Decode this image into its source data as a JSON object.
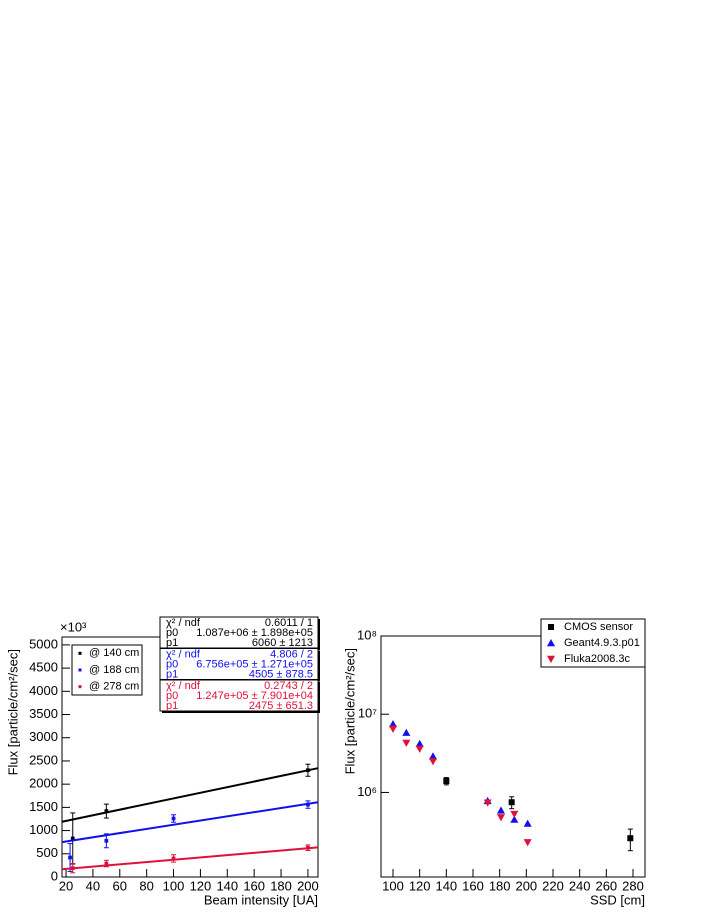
{
  "chart_data": [
    {
      "type": "scatter",
      "x_label": "Beam intensity [UA]",
      "y_label": "Flux [particle/cm²/sec]",
      "y_multiplier": "×10³",
      "xlim": [
        17,
        207.5
      ],
      "xticks": [
        20,
        40,
        60,
        80,
        100,
        120,
        140,
        160,
        180,
        200
      ],
      "ylim": [
        0,
        5170
      ],
      "yticks": [
        0,
        500,
        1000,
        1500,
        2000,
        2500,
        3000,
        3500,
        4000,
        4500,
        5000
      ],
      "series": [
        {
          "name": "@ 140 cm",
          "color": "#000000",
          "x": [
            25,
            50,
            200
          ],
          "values": [
            830,
            1420,
            2300
          ],
          "errors": [
            550,
            150,
            130
          ],
          "fit": {
            "intercept": 1087,
            "slope": 6.06
          },
          "stats": [
            [
              "χ² / ndf",
              "0.6011 / 1"
            ],
            [
              "p0",
              "1.087e+06 ± 1.898e+05"
            ],
            [
              "p1",
              "6060 ± 1213"
            ]
          ]
        },
        {
          "name": "@ 188 cm",
          "color": "#1010ee",
          "x": [
            23,
            50,
            100,
            200
          ],
          "values": [
            420,
            780,
            1260,
            1560
          ],
          "errors": [
            300,
            150,
            80,
            80
          ],
          "fit": {
            "intercept": 675.6,
            "slope": 4.505
          },
          "stats": [
            [
              "χ² / ndf",
              "4.806 / 2"
            ],
            [
              "p0",
              "6.756e+05 ± 1.271e+05"
            ],
            [
              "p1",
              "4505 ± 878.5"
            ]
          ]
        },
        {
          "name": "@ 278 cm",
          "color": "#e0103a",
          "x": [
            25,
            50,
            100,
            200
          ],
          "values": [
            190,
            290,
            400,
            630
          ],
          "errors": [
            100,
            70,
            80,
            60
          ],
          "fit": {
            "intercept": 124.7,
            "slope": 2.475
          },
          "stats": [
            [
              "χ² / ndf",
              "0.2743 / 2"
            ],
            [
              "p0",
              "1.247e+05 ± 7.901e+04"
            ],
            [
              "p1",
              "2475 ± 651.3"
            ]
          ]
        }
      ]
    },
    {
      "type": "scatter",
      "x_label": "SSD [cm]",
      "y_label": "Flux [particle/cm²/sec]",
      "log_y": true,
      "xlim": [
        91,
        289
      ],
      "xticks": [
        100,
        120,
        140,
        160,
        180,
        200,
        220,
        240,
        260,
        280
      ],
      "ylim": [
        83000,
        100000000
      ],
      "yticks": [
        {
          "value": 1000000,
          "label": "10⁶"
        },
        {
          "value": 10000000,
          "label": "10⁷"
        },
        {
          "value": 100000000,
          "label": "10⁸"
        }
      ],
      "series": [
        {
          "name": "CMOS sensor",
          "color": "#000000",
          "marker": "square",
          "x": [
            140,
            189,
            278
          ],
          "values": [
            1400000,
            750000,
            260000
          ],
          "errors": [
            150000,
            130000,
            80000
          ]
        },
        {
          "name": "Geant4.9.3.p01",
          "color": "#1010ee",
          "marker": "triangle-up",
          "x": [
            100,
            110,
            120,
            130,
            171,
            181,
            191,
            201
          ],
          "values": [
            7500000,
            5800000,
            4200000,
            2900000,
            780000,
            590000,
            450000,
            400000
          ]
        },
        {
          "name": "Fluka2008.3c",
          "color": "#e0103a",
          "marker": "triangle-down",
          "x": [
            100,
            110,
            120,
            130,
            171,
            181,
            191,
            201
          ],
          "values": [
            6500000,
            4300000,
            3600000,
            2500000,
            740000,
            480000,
            530000,
            230000
          ]
        }
      ]
    }
  ]
}
